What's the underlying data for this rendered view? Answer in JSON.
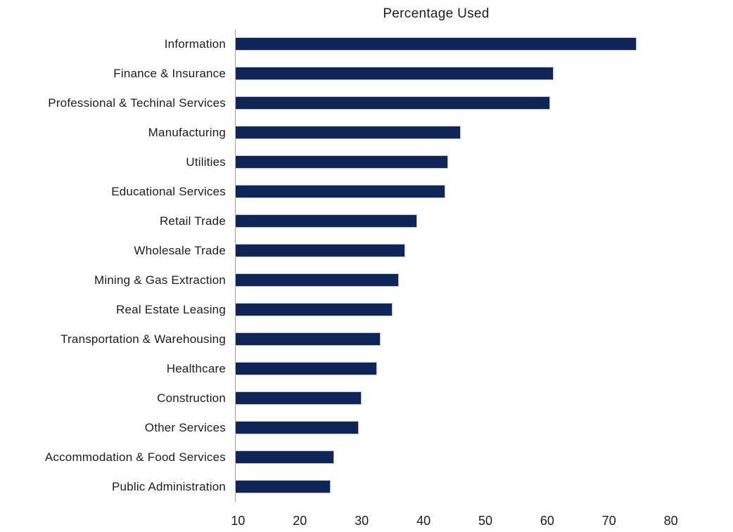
{
  "colors": {
    "bar": "#0f2557",
    "bar_border": "#b9c5d9",
    "axis": "#9e9e9e",
    "text": "#1c1c1c",
    "background": "#ffffff"
  },
  "chart_data": {
    "type": "bar",
    "orientation": "horizontal",
    "title": "Percentage Used",
    "xlabel": "",
    "ylabel": "",
    "categories": [
      "Information",
      "Finance & Insurance",
      "Professional & Techinal Services",
      "Manufacturing",
      "Utilities",
      "Educational Services",
      "Retail Trade",
      "Wholesale Trade",
      "Mining & Gas Extraction",
      "Real Estate Leasing",
      "Transportation & Warehousing",
      "Healthcare",
      "Construction",
      "Other Services",
      "Accommodation & Food Services",
      "Public Administration"
    ],
    "values": [
      74.5,
      61,
      60.5,
      46,
      44,
      43.5,
      39,
      37,
      36,
      35,
      33,
      32.5,
      30,
      29.5,
      25.5,
      25
    ],
    "xlim": [
      9.5,
      85.5
    ],
    "xticks": [
      10,
      20,
      30,
      40,
      50,
      60,
      70,
      80
    ],
    "grid": false,
    "legend": false
  }
}
